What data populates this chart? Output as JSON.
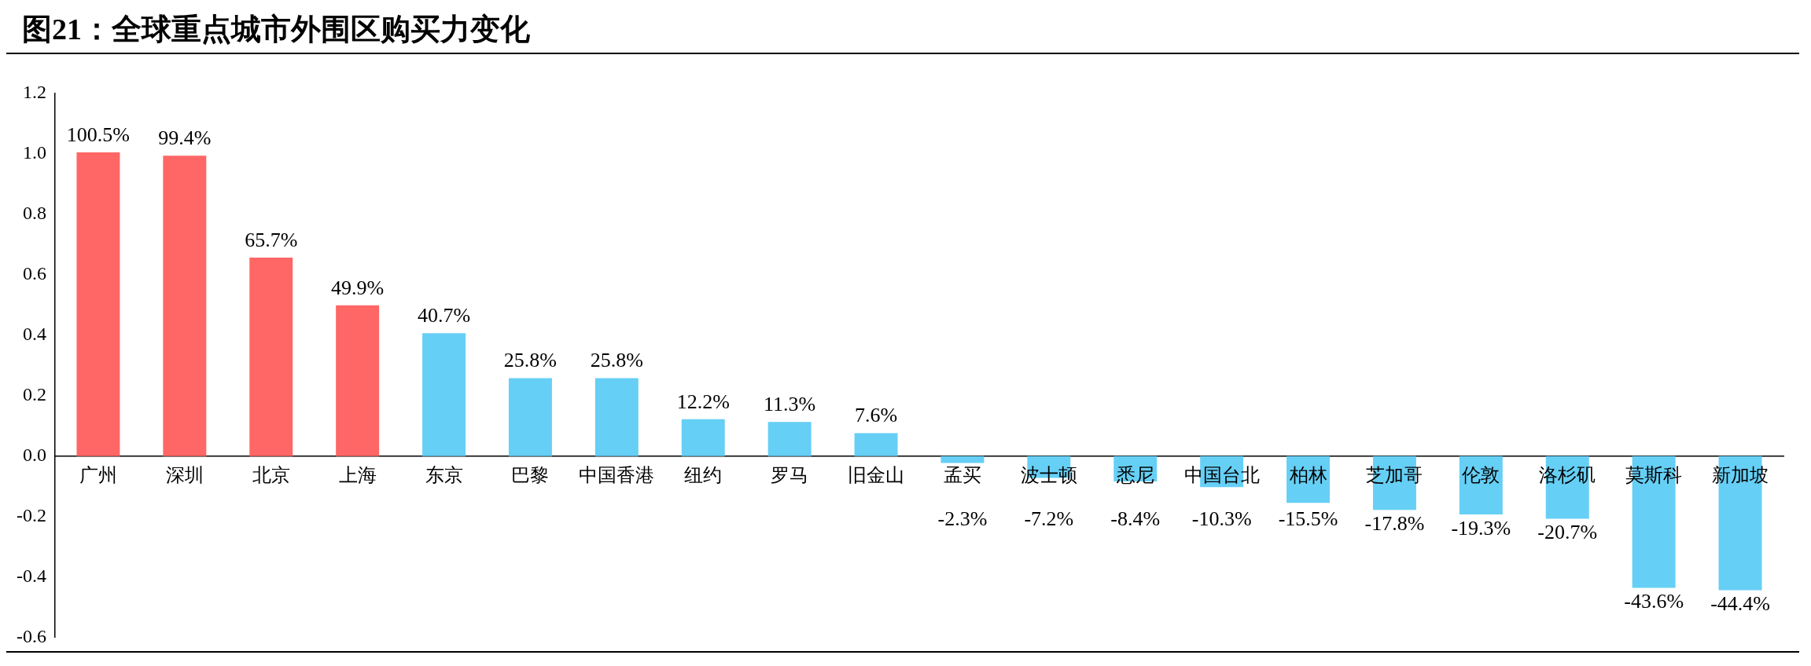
{
  "chart_data": {
    "type": "bar",
    "title": "图21：全球重点城市外围区购买力变化",
    "categories": [
      "广州",
      "深圳",
      "北京",
      "上海",
      "东京",
      "巴黎",
      "中国香港",
      "纽约",
      "罗马",
      "旧金山",
      "孟买",
      "波士顿",
      "悉尼",
      "中国台北",
      "柏林",
      "芝加哥",
      "伦敦",
      "洛杉矶",
      "莫斯科",
      "新加坡"
    ],
    "values": [
      1.005,
      0.994,
      0.657,
      0.499,
      0.407,
      0.258,
      0.258,
      0.122,
      0.113,
      0.076,
      -0.023,
      -0.072,
      -0.084,
      -0.103,
      -0.155,
      -0.178,
      -0.193,
      -0.207,
      -0.436,
      -0.444
    ],
    "value_labels": [
      "100.5%",
      "99.4%",
      "65.7%",
      "49.9%",
      "40.7%",
      "25.8%",
      "25.8%",
      "12.2%",
      "11.3%",
      "7.6%",
      "-2.3%",
      "-7.2%",
      "-8.4%",
      "-10.3%",
      "-15.5%",
      "-17.8%",
      "-19.3%",
      "-20.7%",
      "-43.6%",
      "-44.4%"
    ],
    "colors": [
      "#ff6666",
      "#ff6666",
      "#ff6666",
      "#ff6666",
      "#66cff5",
      "#66cff5",
      "#66cff5",
      "#66cff5",
      "#66cff5",
      "#66cff5",
      "#66cff5",
      "#66cff5",
      "#66cff5",
      "#66cff5",
      "#66cff5",
      "#66cff5",
      "#66cff5",
      "#66cff5",
      "#66cff5",
      "#66cff5"
    ],
    "ylim": [
      -0.6,
      1.2
    ],
    "yticks": [
      {
        "value": -0.6,
        "label": "-0.6"
      },
      {
        "value": -0.4,
        "label": "-0.4"
      },
      {
        "value": -0.2,
        "label": "-0.2"
      },
      {
        "value": 0,
        "label": "0.0"
      },
      {
        "value": 0.2,
        "label": "0.2"
      },
      {
        "value": 0.4,
        "label": "0.4"
      },
      {
        "value": 0.6,
        "label": "0.6"
      },
      {
        "value": 0.8,
        "label": "0.8"
      },
      {
        "value": 1,
        "label": "1.0"
      },
      {
        "value": 1.2,
        "label": "1.2"
      }
    ],
    "grid": false,
    "legend": false
  }
}
